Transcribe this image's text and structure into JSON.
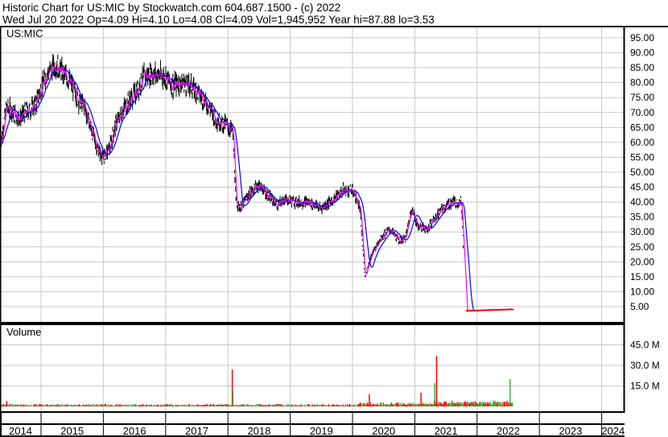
{
  "header": {
    "title": "Historic Chart for US:MIC by Stockwatch.com 604.687.1500 - (c) 2022",
    "quote": "Wed Jul 20 2022  Op=4.09  Hi=4.10  Lo=4.08  Cl=4.09  Vol=1,945,952  Year hi=87.88  lo=3.53"
  },
  "chart_data": [
    {
      "type": "line",
      "label": "US:MIC",
      "ylim": [
        0,
        97.5
      ],
      "yticks": [
        "95.00",
        "90.00",
        "85.00",
        "80.00",
        "75.00",
        "70.00",
        "65.00",
        "60.00",
        "55.00",
        "50.00",
        "45.00",
        "40.00",
        "35.00",
        "30.00",
        "25.00",
        "20.00",
        "15.00",
        "10.00",
        "5.00"
      ],
      "grid": true,
      "x": [
        2014.35,
        2014.45,
        2014.55,
        2014.65,
        2014.75,
        2014.9,
        2015.0,
        2015.1,
        2015.25,
        2015.4,
        2015.5,
        2015.6,
        2015.7,
        2015.8,
        2015.9,
        2016.0,
        2016.1,
        2016.2,
        2016.35,
        2016.5,
        2016.65,
        2016.8,
        2017.0,
        2017.1,
        2017.25,
        2017.4,
        2017.55,
        2017.7,
        2017.8,
        2017.95,
        2018.08,
        2018.13,
        2018.2,
        2018.35,
        2018.5,
        2018.65,
        2018.8,
        2018.9,
        2019.1,
        2019.3,
        2019.5,
        2019.7,
        2019.85,
        2020.0,
        2020.12,
        2020.2,
        2020.3,
        2020.45,
        2020.6,
        2020.75,
        2020.85,
        2020.95,
        2021.05,
        2021.2,
        2021.3,
        2021.45,
        2021.6,
        2021.75,
        2021.82,
        2022.0,
        2022.3,
        2022.57
      ],
      "close": [
        60,
        72,
        70,
        68,
        70,
        72,
        78,
        83,
        86,
        82,
        79,
        74,
        72,
        65,
        58,
        55,
        58,
        66,
        72,
        76,
        82,
        83,
        82,
        79,
        80,
        79,
        76,
        72,
        68,
        66,
        64,
        40,
        38,
        43,
        46,
        42,
        39,
        41,
        40,
        40,
        38,
        41,
        44,
        44,
        38,
        15,
        22,
        28,
        31,
        27,
        28,
        38,
        32,
        31,
        34,
        38,
        40,
        40,
        3.6,
        3.7,
        3.9,
        4.09
      ],
      "series": [
        {
          "color": "#000000"
        },
        {
          "color": "#ff00ff"
        },
        {
          "color": "#0000ff"
        }
      ]
    },
    {
      "type": "bar",
      "label": "Volume",
      "yticks": [
        "45.0 M",
        "30.0 M",
        "15.0 M"
      ],
      "ylim": [
        0,
        52
      ],
      "colors": {
        "up": "#3cb43c",
        "down": "#ff0000"
      },
      "spikes": [
        {
          "x": 2014.45,
          "value": 4,
          "dir": "down"
        },
        {
          "x": 2018.07,
          "value": 27,
          "dir": "down"
        },
        {
          "x": 2018.08,
          "value": 12,
          "dir": "up"
        },
        {
          "x": 2020.27,
          "value": 9,
          "dir": "down"
        },
        {
          "x": 2021.1,
          "value": 10,
          "dir": "down"
        },
        {
          "x": 2021.32,
          "value": 17,
          "dir": "up"
        },
        {
          "x": 2021.35,
          "value": 37,
          "dir": "down"
        },
        {
          "x": 2022.53,
          "value": 20,
          "dir": "up"
        }
      ]
    }
  ],
  "xaxis": {
    "labels": [
      "2014",
      "2015",
      "2016",
      "2017",
      "2018",
      "2019",
      "2020",
      "2021",
      "2022",
      "2023",
      "2024"
    ]
  }
}
